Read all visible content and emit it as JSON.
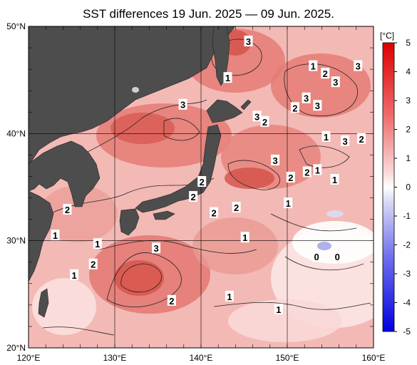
{
  "title": "SST differences 19 Jun. 2025 — 09 Jun. 2025.",
  "colors": {
    "land": "#4d4d4d",
    "sea_base": "#f3b9b5",
    "grid": "#000000",
    "contour": "#222222"
  },
  "map": {
    "lon_range": [
      120,
      160
    ],
    "lat_range": [
      20,
      50
    ],
    "lon_ticks": [
      "120°E",
      "130°E",
      "140°E",
      "150°E",
      "160°E"
    ],
    "lat_ticks": [
      "20°N",
      "30°N",
      "40°N",
      "50°N"
    ],
    "contour_labels": [
      {
        "text": "3",
        "lon": 145.5,
        "lat": 48.6
      },
      {
        "text": "1",
        "lon": 153.0,
        "lat": 46.3
      },
      {
        "text": "3",
        "lon": 158.2,
        "lat": 46.3
      },
      {
        "text": "2",
        "lon": 154.4,
        "lat": 45.6
      },
      {
        "text": "3",
        "lon": 155.6,
        "lat": 44.8
      },
      {
        "text": "1",
        "lon": 143.1,
        "lat": 45.2
      },
      {
        "text": "3",
        "lon": 152.2,
        "lat": 43.3
      },
      {
        "text": "2",
        "lon": 150.9,
        "lat": 42.4
      },
      {
        "text": "3",
        "lon": 153.5,
        "lat": 42.6
      },
      {
        "text": "3",
        "lon": 137.9,
        "lat": 42.7
      },
      {
        "text": "3",
        "lon": 146.5,
        "lat": 41.6
      },
      {
        "text": "2",
        "lon": 147.4,
        "lat": 41.1
      },
      {
        "text": "1",
        "lon": 154.5,
        "lat": 39.7
      },
      {
        "text": "3",
        "lon": 156.7,
        "lat": 39.3
      },
      {
        "text": "2",
        "lon": 158.6,
        "lat": 39.5
      },
      {
        "text": "3",
        "lon": 148.6,
        "lat": 37.5
      },
      {
        "text": "2",
        "lon": 152.3,
        "lat": 36.4
      },
      {
        "text": "1",
        "lon": 153.5,
        "lat": 36.6
      },
      {
        "text": "2",
        "lon": 150.4,
        "lat": 35.9
      },
      {
        "text": "1",
        "lon": 155.5,
        "lat": 35.7
      },
      {
        "text": "2",
        "lon": 140.1,
        "lat": 35.5
      },
      {
        "text": "2",
        "lon": 139.1,
        "lat": 34.1
      },
      {
        "text": "2",
        "lon": 124.5,
        "lat": 32.9
      },
      {
        "text": "2",
        "lon": 141.5,
        "lat": 32.6
      },
      {
        "text": "2",
        "lon": 144.1,
        "lat": 33.1
      },
      {
        "text": "1",
        "lon": 150.1,
        "lat": 33.5
      },
      {
        "text": "1",
        "lon": 123.1,
        "lat": 30.5
      },
      {
        "text": "1",
        "lon": 145.1,
        "lat": 30.3
      },
      {
        "text": "1",
        "lon": 128.0,
        "lat": 29.7
      },
      {
        "text": "3",
        "lon": 134.8,
        "lat": 29.3
      },
      {
        "text": "0",
        "lon": 153.4,
        "lat": 28.5
      },
      {
        "text": "0",
        "lon": 155.8,
        "lat": 28.5
      },
      {
        "text": "2",
        "lon": 127.5,
        "lat": 27.8
      },
      {
        "text": "1",
        "lon": 125.3,
        "lat": 26.8
      },
      {
        "text": "1",
        "lon": 143.3,
        "lat": 24.8
      },
      {
        "text": "2",
        "lon": 136.6,
        "lat": 24.4
      },
      {
        "text": "1",
        "lon": 149.0,
        "lat": 23.6
      }
    ]
  },
  "colorbar": {
    "unit": "[°C]",
    "ticks": [
      "5",
      "4",
      "3",
      "2",
      "1",
      "0",
      "-1",
      "-2",
      "-3",
      "-4",
      "-5"
    ],
    "range": [
      -5,
      5
    ]
  }
}
